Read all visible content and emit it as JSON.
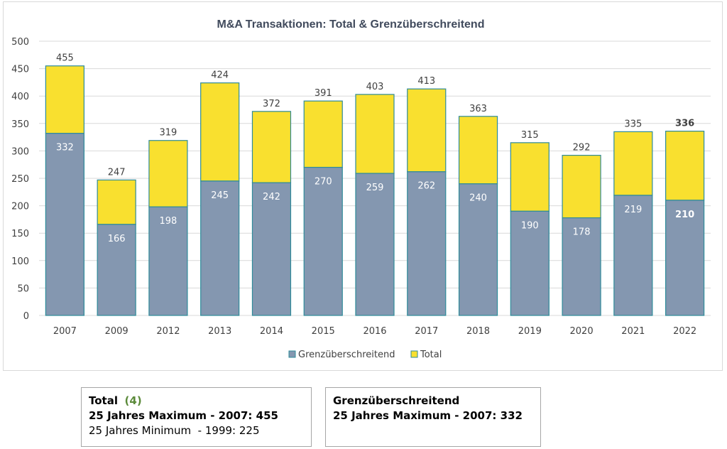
{
  "chart_data": {
    "type": "bar",
    "stacked": true,
    "title": "M&A Transaktionen: Total & Grenzüberschreitend",
    "xlabel": "",
    "ylabel": "",
    "ylim": [
      0,
      500
    ],
    "yticks": [
      0,
      50,
      100,
      150,
      200,
      250,
      300,
      350,
      400,
      450,
      500
    ],
    "grid": true,
    "legend_position": "bottom",
    "categories": [
      "2007",
      "2009",
      "2012",
      "2013",
      "2014",
      "2015",
      "2016",
      "2017",
      "2018",
      "2019",
      "2020",
      "2021",
      "2022"
    ],
    "series": [
      {
        "name": "Grenzüberschreitend",
        "values": [
          332,
          166,
          198,
          245,
          242,
          270,
          259,
          262,
          240,
          190,
          178,
          219,
          210
        ],
        "color": "#8497b0"
      },
      {
        "name": "Total",
        "values": [
          455,
          247,
          319,
          424,
          372,
          391,
          403,
          413,
          363,
          315,
          292,
          335,
          336
        ],
        "color": "#f9e02f"
      }
    ],
    "bold_category": "2022"
  },
  "colors": {
    "bar_border": "#2e8b9a",
    "grid": "#d9d9d9",
    "title": "#404a5c"
  },
  "info_boxes": {
    "total": {
      "title": "Total",
      "note": "(4)",
      "line1": "25 Jahres Maximum - 2007: 455",
      "line2": "25 Jahres Minimum  - 1999: 225"
    },
    "cross": {
      "title": "Grenzüberschreitend",
      "line1": "25 Jahres Maximum - 2007: 332"
    }
  }
}
